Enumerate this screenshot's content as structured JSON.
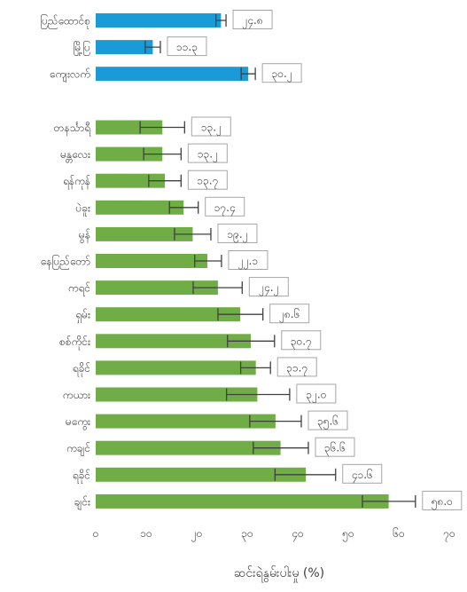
{
  "chart_data": {
    "type": "bar",
    "orientation": "horizontal",
    "xlabel": "ဆင်းရဲနွမ်းပါးမှု (%)",
    "xlim": [
      0,
      70
    ],
    "x_ticks": [
      0,
      10,
      20,
      30,
      40,
      50,
      60,
      70
    ],
    "x_tick_labels": [
      "၀",
      "၁၀",
      "၂၀",
      "၃၀",
      "၄၀",
      "၅၀",
      "၆၀",
      "၇၀"
    ],
    "grid": false,
    "legend": "none",
    "colors": {
      "group_a": "#1a9bd7",
      "group_b": "#70ad47",
      "error_bar": "#404040"
    },
    "groups": [
      {
        "color_key": "group_a",
        "categories": [
          "ပြည်ထောင်စု",
          "မြို့ပြ",
          "ကျေးလက်"
        ],
        "values": [
          24.8,
          11.3,
          30.2
        ],
        "labels": [
          "၂၄.၈",
          "၁၁.၃",
          "၃၀.၂"
        ],
        "err_low": [
          23.8,
          9.8,
          28.8
        ],
        "err_high": [
          25.8,
          12.8,
          31.6
        ]
      },
      {
        "color_key": "group_b",
        "categories": [
          "တနင်္သာရီ",
          "မန္တလေး",
          "ရန်ကုန်",
          "ပဲခူး",
          "မွန်",
          "နေပြည်တော်",
          "ကရင်",
          "ရှမ်း",
          "စစ်ကိုင်း",
          "ရခိုင်",
          "ကယား",
          "မကွေး",
          "ကချင်",
          "ရခိုင်",
          "ချင်း"
        ],
        "values": [
          13.2,
          13.2,
          13.7,
          17.4,
          19.2,
          22.1,
          24.2,
          28.6,
          30.7,
          31.7,
          32.0,
          35.6,
          36.6,
          41.6,
          58.0
        ],
        "labels": [
          "၁၃.၂",
          "၁၃.၂",
          "၁၃.၇",
          "၁၇.၄",
          "၁၉.၂",
          "၂၂.၁",
          "၂၄.၂",
          "၂၈.၆",
          "၃၀.၇",
          "၃၁.၇",
          "၃၂.၀",
          "၃၅.၆",
          "၃၆.၆",
          "၄၁.၆",
          "၅၈.၀"
        ],
        "err_low": [
          8.8,
          9.5,
          10.5,
          14.6,
          15.6,
          19.6,
          19.3,
          24.2,
          26.1,
          28.7,
          25.9,
          30.5,
          31.2,
          35.5,
          52.8
        ],
        "err_high": [
          17.6,
          16.9,
          16.9,
          20.3,
          22.8,
          24.9,
          29.0,
          33.1,
          35.4,
          34.6,
          38.4,
          40.7,
          42.1,
          47.5,
          63.3
        ]
      }
    ]
  }
}
